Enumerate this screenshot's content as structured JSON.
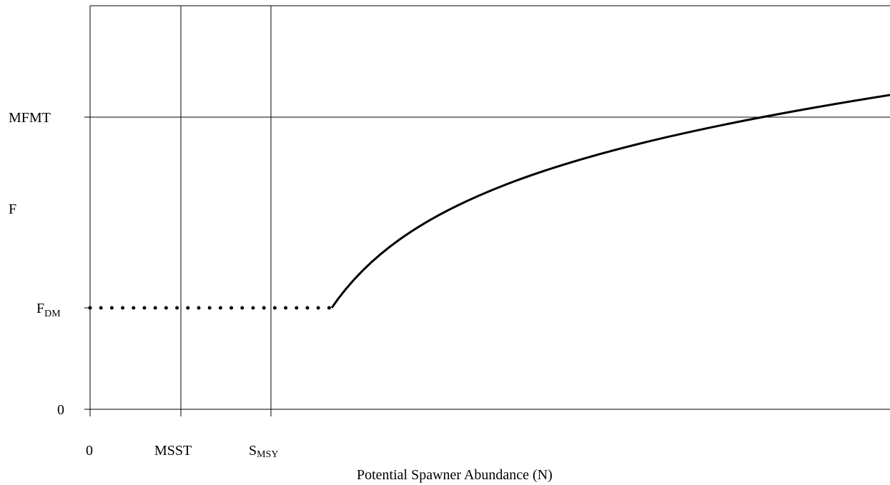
{
  "chart_data": {
    "type": "line",
    "title": "",
    "xlabel": "Potential Spawner Abundance (N)",
    "ylabel": "F",
    "x_ticks": [
      {
        "label": "0",
        "sub": ""
      },
      {
        "label": "MSST",
        "sub": ""
      },
      {
        "label": "S",
        "sub": "MSY"
      }
    ],
    "y_ticks": [
      {
        "label": "0",
        "sub": ""
      },
      {
        "label": "F",
        "sub": "DM"
      },
      {
        "label": "MFMT",
        "sub": ""
      }
    ],
    "reference_lines": {
      "vertical_at": [
        "MSST",
        "S_MSY"
      ],
      "horizontal_at": [
        "MFMT"
      ]
    },
    "series": [
      {
        "style": "dotted",
        "description_points": [
          [
            0,
            "F_DM"
          ],
          [
            "above S_MSY",
            "F_DM"
          ]
        ]
      },
      {
        "style": "solid",
        "shape": "concave increasing curve from F_DM, crossing MFMT and continuing above it"
      }
    ],
    "grid": false
  }
}
